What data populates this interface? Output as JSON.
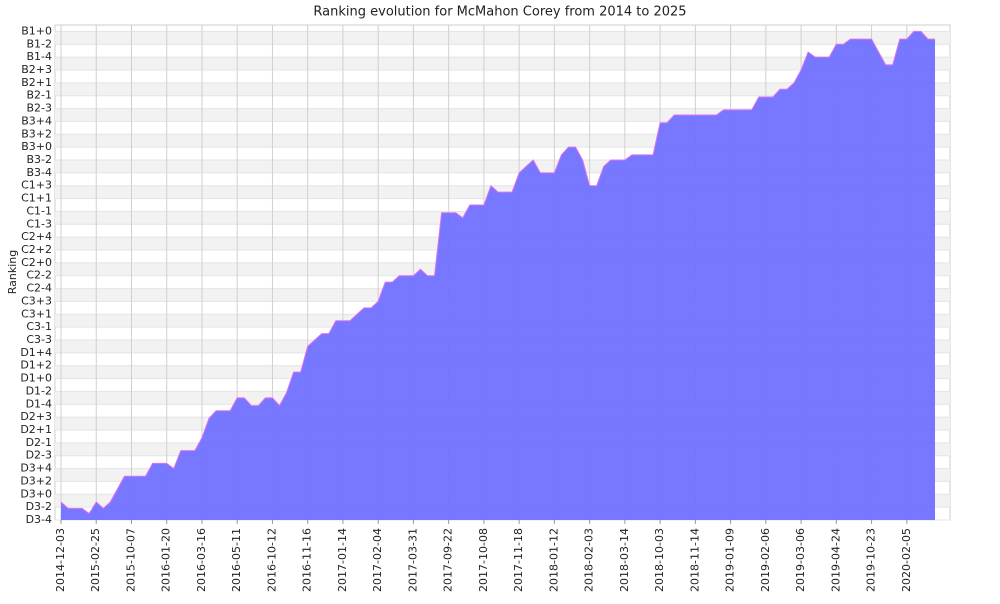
{
  "chart_data": {
    "type": "area",
    "title": "Ranking evolution for McMahon Corey from 2014 to 2025",
    "y_label": "Ranking",
    "categories": [
      "2014-12-03",
      null,
      null,
      null,
      null,
      "2015-02-25",
      null,
      null,
      null,
      null,
      "2015-10-07",
      null,
      null,
      null,
      null,
      "2016-01-20",
      null,
      null,
      null,
      null,
      "2016-03-16",
      null,
      null,
      null,
      null,
      "2016-05-11",
      null,
      null,
      null,
      null,
      "2016-10-12",
      null,
      null,
      null,
      null,
      "2016-11-16",
      null,
      null,
      null,
      null,
      "2017-01-14",
      null,
      null,
      null,
      null,
      "2017-02-04",
      null,
      null,
      null,
      null,
      "2017-03-31",
      null,
      null,
      null,
      null,
      "2017-09-22",
      null,
      null,
      null,
      null,
      "2017-10-08",
      null,
      null,
      null,
      null,
      "2017-11-18",
      null,
      null,
      null,
      null,
      "2018-01-12",
      null,
      null,
      null,
      null,
      "2018-02-03",
      null,
      null,
      null,
      null,
      "2018-03-14",
      null,
      null,
      null,
      null,
      "2018-10-03",
      null,
      null,
      null,
      null,
      "2018-11-14",
      null,
      null,
      null,
      null,
      "2019-01-09",
      null,
      null,
      null,
      null,
      "2019-02-06",
      null,
      null,
      null,
      null,
      "2019-03-06",
      null,
      null,
      null,
      null,
      "2019-04-24",
      null,
      null,
      null,
      null,
      "2019-10-23",
      null,
      null,
      null,
      null,
      "2020-02-05",
      null,
      null,
      null,
      null
    ],
    "values": [
      1.4,
      0.9,
      0.9,
      0.9,
      0.5,
      1.4,
      0.9,
      1.4,
      2.4,
      3.4,
      3.4,
      3.4,
      3.4,
      4.4,
      4.4,
      4.4,
      4.0,
      5.4,
      5.4,
      5.4,
      6.4,
      7.9,
      8.5,
      8.5,
      8.5,
      9.5,
      9.5,
      8.9,
      8.9,
      9.5,
      9.5,
      8.9,
      9.9,
      11.5,
      11.5,
      13.5,
      14.0,
      14.5,
      14.5,
      15.5,
      15.5,
      15.5,
      16.0,
      16.5,
      16.5,
      17.0,
      18.5,
      18.5,
      19.0,
      19.0,
      19.0,
      19.5,
      19.0,
      19.0,
      23.9,
      23.9,
      23.9,
      23.5,
      24.5,
      24.5,
      24.5,
      26.0,
      25.5,
      25.5,
      25.5,
      27.0,
      27.5,
      28.0,
      27.0,
      27.0,
      27.0,
      28.4,
      29.0,
      29.0,
      28.0,
      26.0,
      26.0,
      27.5,
      28.0,
      28.0,
      28.0,
      28.4,
      28.4,
      28.4,
      28.4,
      30.9,
      30.9,
      31.5,
      31.5,
      31.5,
      31.5,
      31.5,
      31.5,
      31.5,
      31.9,
      31.9,
      31.9,
      31.9,
      31.9,
      32.9,
      32.9,
      32.9,
      33.5,
      33.5,
      34.0,
      35.0,
      36.4,
      36.0,
      36.0,
      36.0,
      37.0,
      37.0,
      37.4,
      37.4,
      37.4,
      37.4,
      36.4,
      35.4,
      35.4,
      37.4,
      37.4,
      38.0,
      38.0,
      37.4,
      37.4
    ],
    "color": "#7070ff",
    "line_color": "#e070f0",
    "ylim": [
      0,
      38.5
    ],
    "yticks": [
      {
        "value": 0,
        "label": "D3-4"
      },
      {
        "value": 1,
        "label": "D3-2"
      },
      {
        "value": 2,
        "label": "D3+0"
      },
      {
        "value": 3,
        "label": "D3+2"
      },
      {
        "value": 4,
        "label": "D3+4"
      },
      {
        "value": 5,
        "label": "D2-3"
      },
      {
        "value": 6,
        "label": "D2-1"
      },
      {
        "value": 7,
        "label": "D2+1"
      },
      {
        "value": 8,
        "label": "D2+3"
      },
      {
        "value": 9,
        "label": "D1-4"
      },
      {
        "value": 10,
        "label": "D1-2"
      },
      {
        "value": 11,
        "label": "D1+0"
      },
      {
        "value": 12,
        "label": "D1+2"
      },
      {
        "value": 13,
        "label": "D1+4"
      },
      {
        "value": 14,
        "label": "C3-3"
      },
      {
        "value": 15,
        "label": "C3-1"
      },
      {
        "value": 16,
        "label": "C3+1"
      },
      {
        "value": 17,
        "label": "C3+3"
      },
      {
        "value": 18,
        "label": "C2-4"
      },
      {
        "value": 19,
        "label": "C2-2"
      },
      {
        "value": 20,
        "label": "C2+0"
      },
      {
        "value": 21,
        "label": "C2+2"
      },
      {
        "value": 22,
        "label": "C2+4"
      },
      {
        "value": 23,
        "label": "C1-3"
      },
      {
        "value": 24,
        "label": "C1-1"
      },
      {
        "value": 25,
        "label": "C1+1"
      },
      {
        "value": 26,
        "label": "C1+3"
      },
      {
        "value": 27,
        "label": "B3-4"
      },
      {
        "value": 28,
        "label": "B3-2"
      },
      {
        "value": 29,
        "label": "B3+0"
      },
      {
        "value": 30,
        "label": "B3+2"
      },
      {
        "value": 31,
        "label": "B3+4"
      },
      {
        "value": 32,
        "label": "B2-3"
      },
      {
        "value": 33,
        "label": "B2-1"
      },
      {
        "value": 34,
        "label": "B2+1"
      },
      {
        "value": 35,
        "label": "B2+3"
      },
      {
        "value": 36,
        "label": "B1-4"
      },
      {
        "value": 37,
        "label": "B1-2"
      },
      {
        "value": 38,
        "label": "B1+0"
      }
    ],
    "grid": true
  }
}
